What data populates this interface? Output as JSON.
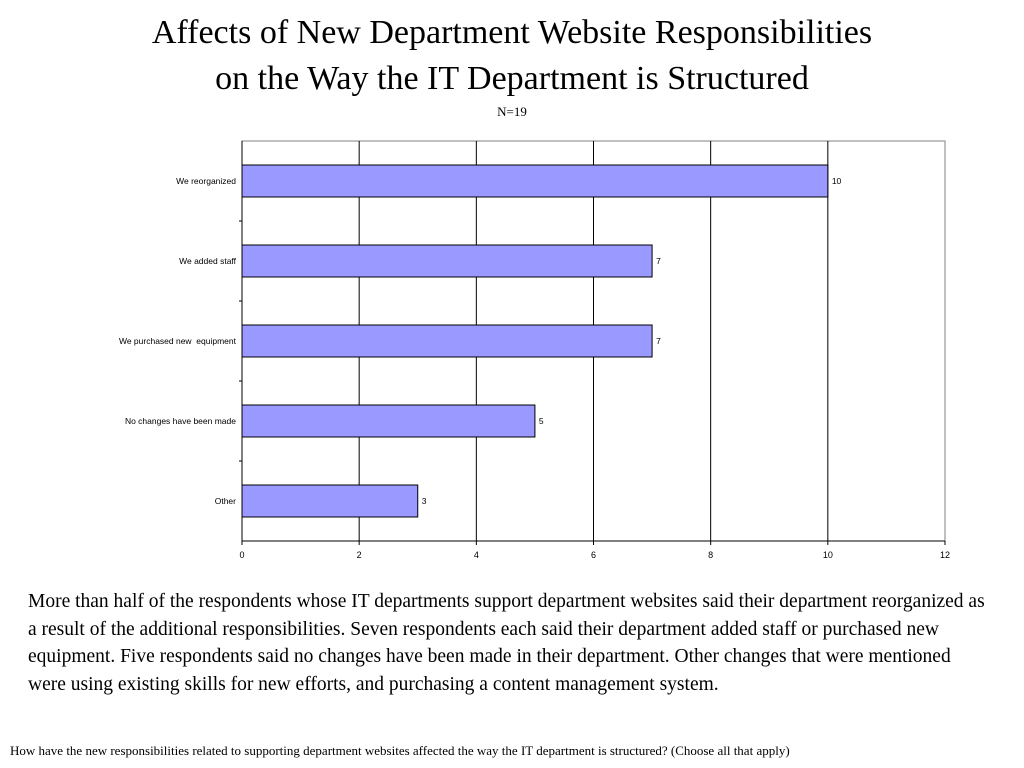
{
  "chart_data": {
    "type": "bar",
    "orientation": "horizontal",
    "title_line1": "Affects of New Department Website Responsibilities",
    "title_line2": "on the Way the IT Department is Structured",
    "subtitle": "N=19",
    "categories": [
      "We reorganized",
      "We added staff",
      "We purchased new  equipment",
      "No changes have been made",
      "Other"
    ],
    "values": [
      10,
      7,
      7,
      5,
      3
    ],
    "xlim": [
      0,
      12
    ],
    "xticks": [
      0,
      2,
      4,
      6,
      8,
      10,
      12
    ],
    "xlabel": "",
    "ylabel": "",
    "grid": true,
    "bar_color": "#9999ff",
    "bar_edge_color": "#000000"
  },
  "summary_text": "More than half of the respondents whose IT departments support department websites said their department reorganized as a result of the additional responsibilities.  Seven respondents each said their department added staff or purchased new equipment.  Five respondents said no changes have been made in their department. Other changes that were mentioned were using existing skills for new efforts, and purchasing a content management system.",
  "question_text": "How have the new responsibilities related to supporting department websites affected the way the IT department is structured? (Choose all that apply)"
}
